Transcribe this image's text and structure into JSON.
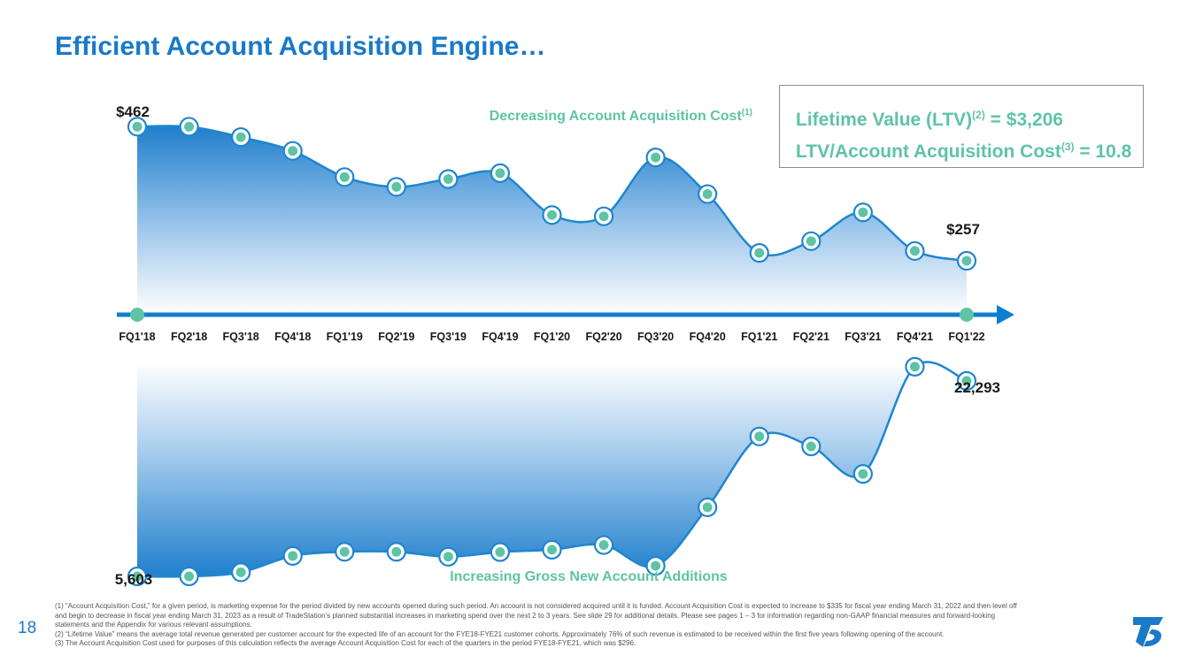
{
  "page": {
    "title": "Efficient Account Acquisition Engine…",
    "page_number": "18"
  },
  "ltv_box": {
    "line1_text": "Lifetime Value (LTV)",
    "line1_sup": "(2)",
    "line1_value": " = $3,206",
    "line2_text": "LTV/Account Acquisition Cost",
    "line2_sup": "(3)",
    "line2_value": " = 10.8"
  },
  "colors": {
    "title": "#1a7ac8",
    "line": "#1f86cf",
    "marker_fill": "#5fc3a6",
    "accent_green": "#5fc3a6",
    "axis": "#0e7fd0",
    "text": "#1a1a1a"
  },
  "chart_data": [
    {
      "type": "area",
      "title": "Decreasing Account Acquisition Cost",
      "title_sup": "(1)",
      "categories": [
        "FQ1'18",
        "FQ2'18",
        "FQ3'18",
        "FQ4'18",
        "FQ1'19",
        "FQ2'19",
        "FQ3'19",
        "FQ4'19",
        "FQ1'20",
        "FQ2'20",
        "FQ3'20",
        "FQ4'20",
        "FQ1'21",
        "FQ2'21",
        "FQ3'21",
        "FQ4'21",
        "FQ1'22"
      ],
      "values": [
        462,
        462,
        446,
        425,
        385,
        370,
        382,
        391,
        327,
        325,
        415,
        359,
        269,
        287,
        331,
        272,
        257
      ],
      "ylim": [
        180,
        480
      ],
      "data_labels": [
        {
          "index": 0,
          "text": "$462"
        },
        {
          "index": 16,
          "text": "$257"
        }
      ]
    },
    {
      "type": "area",
      "title": "Increasing Gross New Account Additions",
      "categories": [
        "FQ1'18",
        "FQ2'18",
        "FQ3'18",
        "FQ4'18",
        "FQ1'19",
        "FQ2'19",
        "FQ3'19",
        "FQ4'19",
        "FQ1'20",
        "FQ2'20",
        "FQ3'20",
        "FQ4'20",
        "FQ1'21",
        "FQ2'21",
        "FQ3'21",
        "FQ4'21",
        "FQ1'22"
      ],
      "values": [
        5603,
        5603,
        5950,
        7350,
        7700,
        7700,
        7280,
        7680,
        7880,
        8280,
        6500,
        11500,
        17550,
        16700,
        14350,
        23500,
        22293
      ],
      "ylim": [
        5000,
        25000
      ],
      "data_labels": [
        {
          "index": 0,
          "text": "5,603"
        },
        {
          "index": 16,
          "text": "22,293"
        }
      ]
    }
  ],
  "footnotes": [
    "(1) “Account Acquisition Cost,” for a given period, is marketing expense for the period divided by new accounts opened during such period. An account is not considered acquired until it is funded. Account Acquisition Cost is expected to increase to $335 for fiscal year ending March 31, 2022 and then level off and begin to decrease in fiscal year ending March 31, 2023 as a result of TradeStation’s planned substantial increases in marketing spend over the next 2 to 3 years. See slide 29 for additional details. Please see pages 1 – 3 for information regarding non-GAAP financial measures and forward-looking statements and the Appendix for various relevant assumptions.",
    "(2) “Lifetime Value” means the average total revenue generated per customer account for the expected life of an account for the FYE18-FYE21 customer cohorts.  Approximately 76% of such revenue is estimated to be received within the first five years following opening of the account.",
    "(3) The Account Acquisition Cost used for purposes of this calculation reflects the average Account Acquisition Cost for each of the quarters in the period FYE18-FYE21, which was $296."
  ]
}
